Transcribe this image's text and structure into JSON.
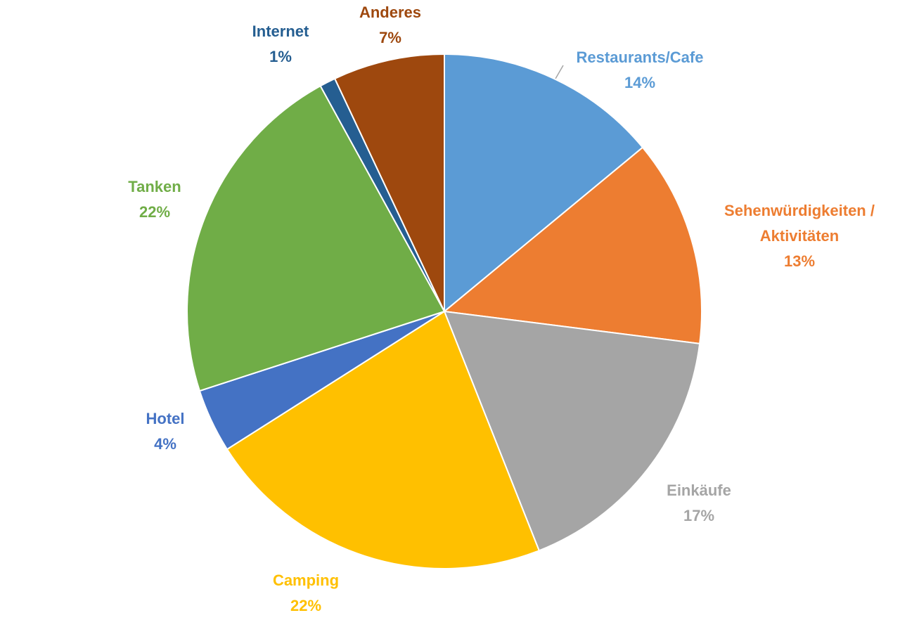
{
  "chart_data": {
    "type": "pie",
    "categories": [
      "Restaurants/Cafe",
      "Sehenwürdigkeiten / Aktivitäten",
      "Einkäufe",
      "Camping",
      "Hotel",
      "Tanken",
      "Internet",
      "Anderes"
    ],
    "values": [
      14,
      13,
      17,
      22,
      4,
      22,
      1,
      7
    ],
    "value_labels": [
      "14%",
      "13%",
      "17%",
      "22%",
      "4%",
      "22%",
      "1%",
      "7%"
    ],
    "colors": [
      "#5b9bd5",
      "#ed7d31",
      "#a5a5a5",
      "#ffc000",
      "#4472c4",
      "#70ad47",
      "#255e91",
      "#9e480e"
    ]
  }
}
